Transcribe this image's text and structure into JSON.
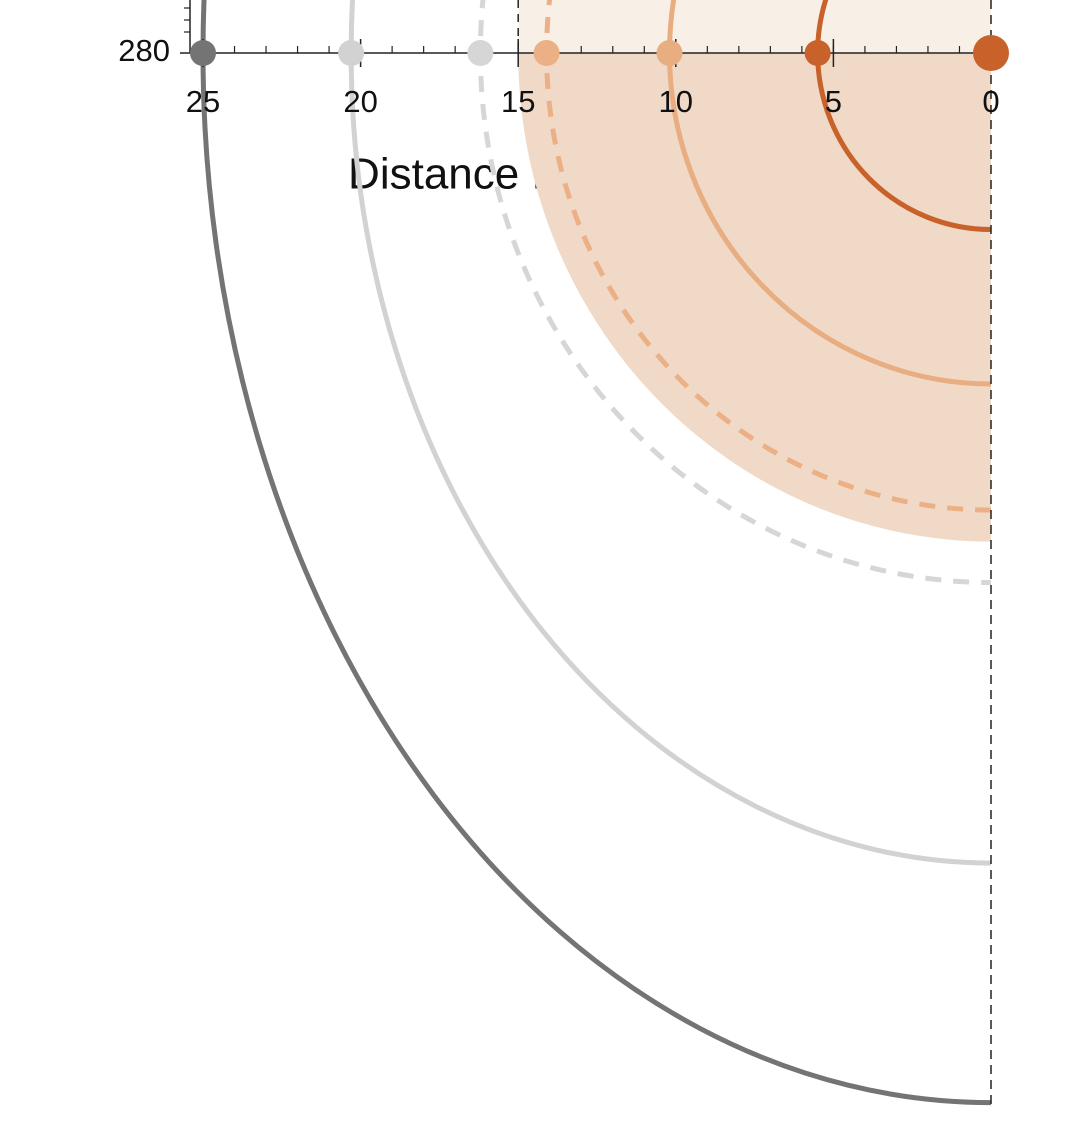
{
  "chart_data": {
    "type": "radial-profile",
    "xlabel": "Distance from center [mm]",
    "xlim": [
      25,
      0
    ],
    "xticks": [
      25,
      20,
      15,
      10,
      5,
      0
    ],
    "yticks": [
      280
    ],
    "shaded_region": {
      "x": 15,
      "depth": 15.5,
      "color": "#f0d9c7",
      "top_color": "#f8f0e6"
    },
    "series": [
      {
        "color": "#747474",
        "x": 25,
        "depth": 33.3,
        "dashed": false
      },
      {
        "color": "#d2d2d2",
        "x": 20.3,
        "depth": 25.7,
        "dashed": false
      },
      {
        "color": "#d6d6d6",
        "x": 16.2,
        "depth": 16.8,
        "dashed": true
      },
      {
        "color": "#ecb086",
        "x": 14.1,
        "depth": 14.5,
        "dashed": true
      },
      {
        "color": "#e8ad80",
        "x": 10.2,
        "depth": 10.5,
        "dashed": false
      },
      {
        "color": "#c8612a",
        "x": 5.5,
        "depth": 5.6,
        "dashed": false
      },
      {
        "color": "#c8612a",
        "x": 0,
        "depth": 0,
        "dashed": false
      }
    ]
  }
}
